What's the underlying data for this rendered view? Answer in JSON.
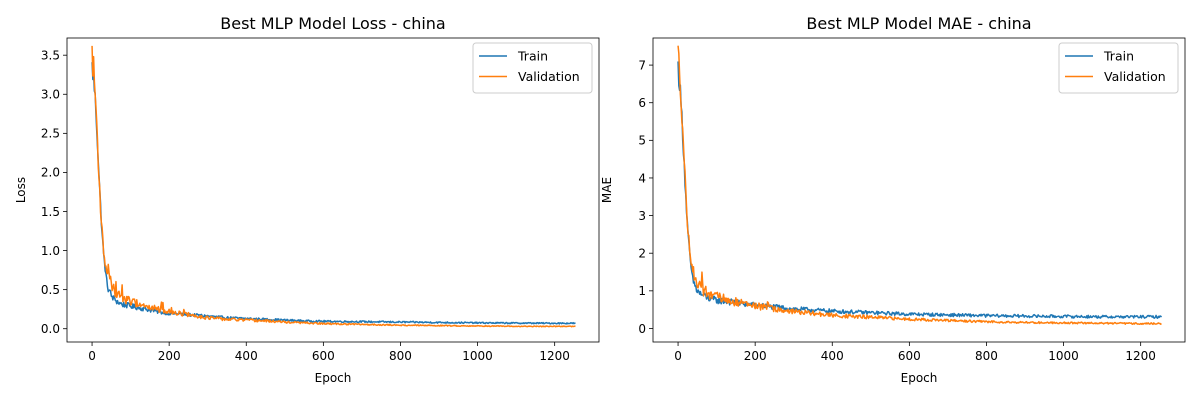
{
  "chart_data": [
    {
      "type": "line",
      "title": "Best MLP Model Loss - china",
      "xlabel": "Epoch",
      "ylabel": "Loss",
      "xlim": [
        -65,
        1315
      ],
      "ylim": [
        -0.17,
        3.72
      ],
      "xticks": [
        0,
        200,
        400,
        600,
        800,
        1000,
        1200
      ],
      "xtick_labels": [
        "0",
        "200",
        "400",
        "600",
        "800",
        "1000",
        "1200"
      ],
      "yticks": [
        0,
        0.5,
        1,
        1.5,
        2,
        2.5,
        3,
        3.5
      ],
      "ytick_labels": [
        "0.0",
        "0.5",
        "1.0",
        "1.5",
        "2.0",
        "2.5",
        "3.0",
        "3.5"
      ],
      "legend": "top-right",
      "grid": false,
      "series": [
        {
          "name": "Train",
          "color": "#1f77b4",
          "x": [
            0,
            5,
            10,
            15,
            20,
            25,
            30,
            35,
            40,
            45,
            50,
            60,
            70,
            80,
            90,
            100,
            120,
            140,
            160,
            180,
            200,
            250,
            300,
            350,
            400,
            450,
            500,
            550,
            600,
            700,
            800,
            900,
            1000,
            1100,
            1200,
            1255
          ],
          "y": [
            3.35,
            3.15,
            2.8,
            2.3,
            1.75,
            1.3,
            0.95,
            0.72,
            0.56,
            0.48,
            0.42,
            0.37,
            0.33,
            0.31,
            0.3,
            0.29,
            0.27,
            0.25,
            0.23,
            0.21,
            0.2,
            0.18,
            0.16,
            0.14,
            0.13,
            0.12,
            0.11,
            0.1,
            0.095,
            0.09,
            0.085,
            0.08,
            0.075,
            0.072,
            0.07,
            0.07
          ]
        },
        {
          "name": "Validation",
          "color": "#ff7f0e",
          "x": [
            0,
            5,
            10,
            15,
            20,
            25,
            30,
            35,
            40,
            45,
            50,
            60,
            70,
            80,
            90,
            100,
            120,
            140,
            160,
            180,
            200,
            250,
            300,
            350,
            400,
            450,
            500,
            550,
            600,
            700,
            800,
            900,
            1000,
            1100,
            1200,
            1255
          ],
          "y": [
            3.53,
            3.25,
            2.85,
            2.3,
            1.75,
            1.3,
            1.0,
            0.8,
            0.7,
            0.62,
            0.56,
            0.48,
            0.43,
            0.4,
            0.37,
            0.35,
            0.32,
            0.29,
            0.26,
            0.24,
            0.22,
            0.18,
            0.14,
            0.12,
            0.11,
            0.1,
            0.085,
            0.075,
            0.065,
            0.055,
            0.045,
            0.04,
            0.035,
            0.03,
            0.03,
            0.03
          ]
        }
      ]
    },
    {
      "type": "line",
      "title": "Best MLP Model MAE - china",
      "xlabel": "Epoch",
      "ylabel": "MAE",
      "xlim": [
        -65,
        1315
      ],
      "ylim": [
        -0.36,
        7.72
      ],
      "xticks": [
        0,
        200,
        400,
        600,
        800,
        1000,
        1200
      ],
      "xtick_labels": [
        "0",
        "200",
        "400",
        "600",
        "800",
        "1000",
        "1200"
      ],
      "yticks": [
        0,
        1,
        2,
        3,
        4,
        5,
        6,
        7
      ],
      "ytick_labels": [
        "0",
        "1",
        "2",
        "3",
        "4",
        "5",
        "6",
        "7"
      ],
      "legend": "top-right",
      "grid": false,
      "series": [
        {
          "name": "Train",
          "color": "#1f77b4",
          "x": [
            0,
            5,
            10,
            15,
            20,
            25,
            30,
            35,
            40,
            45,
            50,
            60,
            70,
            80,
            90,
            100,
            120,
            140,
            160,
            180,
            200,
            250,
            300,
            350,
            400,
            450,
            500,
            550,
            600,
            700,
            800,
            900,
            1000,
            1100,
            1200,
            1255
          ],
          "y": [
            6.95,
            6.4,
            5.6,
            4.6,
            3.5,
            2.6,
            2.0,
            1.5,
            1.25,
            1.1,
            1.0,
            0.9,
            0.85,
            0.8,
            0.78,
            0.75,
            0.72,
            0.7,
            0.67,
            0.64,
            0.62,
            0.57,
            0.52,
            0.49,
            0.46,
            0.44,
            0.42,
            0.4,
            0.38,
            0.36,
            0.34,
            0.33,
            0.32,
            0.31,
            0.31,
            0.31
          ]
        },
        {
          "name": "Validation",
          "color": "#ff7f0e",
          "x": [
            0,
            5,
            10,
            15,
            20,
            25,
            30,
            35,
            40,
            45,
            50,
            60,
            70,
            80,
            90,
            100,
            120,
            140,
            160,
            180,
            200,
            250,
            300,
            350,
            400,
            450,
            500,
            550,
            600,
            700,
            800,
            900,
            1000,
            1100,
            1200,
            1255
          ],
          "y": [
            7.3,
            6.7,
            5.8,
            4.7,
            3.6,
            2.7,
            2.1,
            1.7,
            1.45,
            1.3,
            1.2,
            1.05,
            0.98,
            0.92,
            0.88,
            0.84,
            0.78,
            0.73,
            0.68,
            0.64,
            0.6,
            0.52,
            0.45,
            0.4,
            0.35,
            0.32,
            0.3,
            0.27,
            0.25,
            0.21,
            0.18,
            0.16,
            0.15,
            0.14,
            0.13,
            0.13
          ]
        }
      ]
    }
  ]
}
